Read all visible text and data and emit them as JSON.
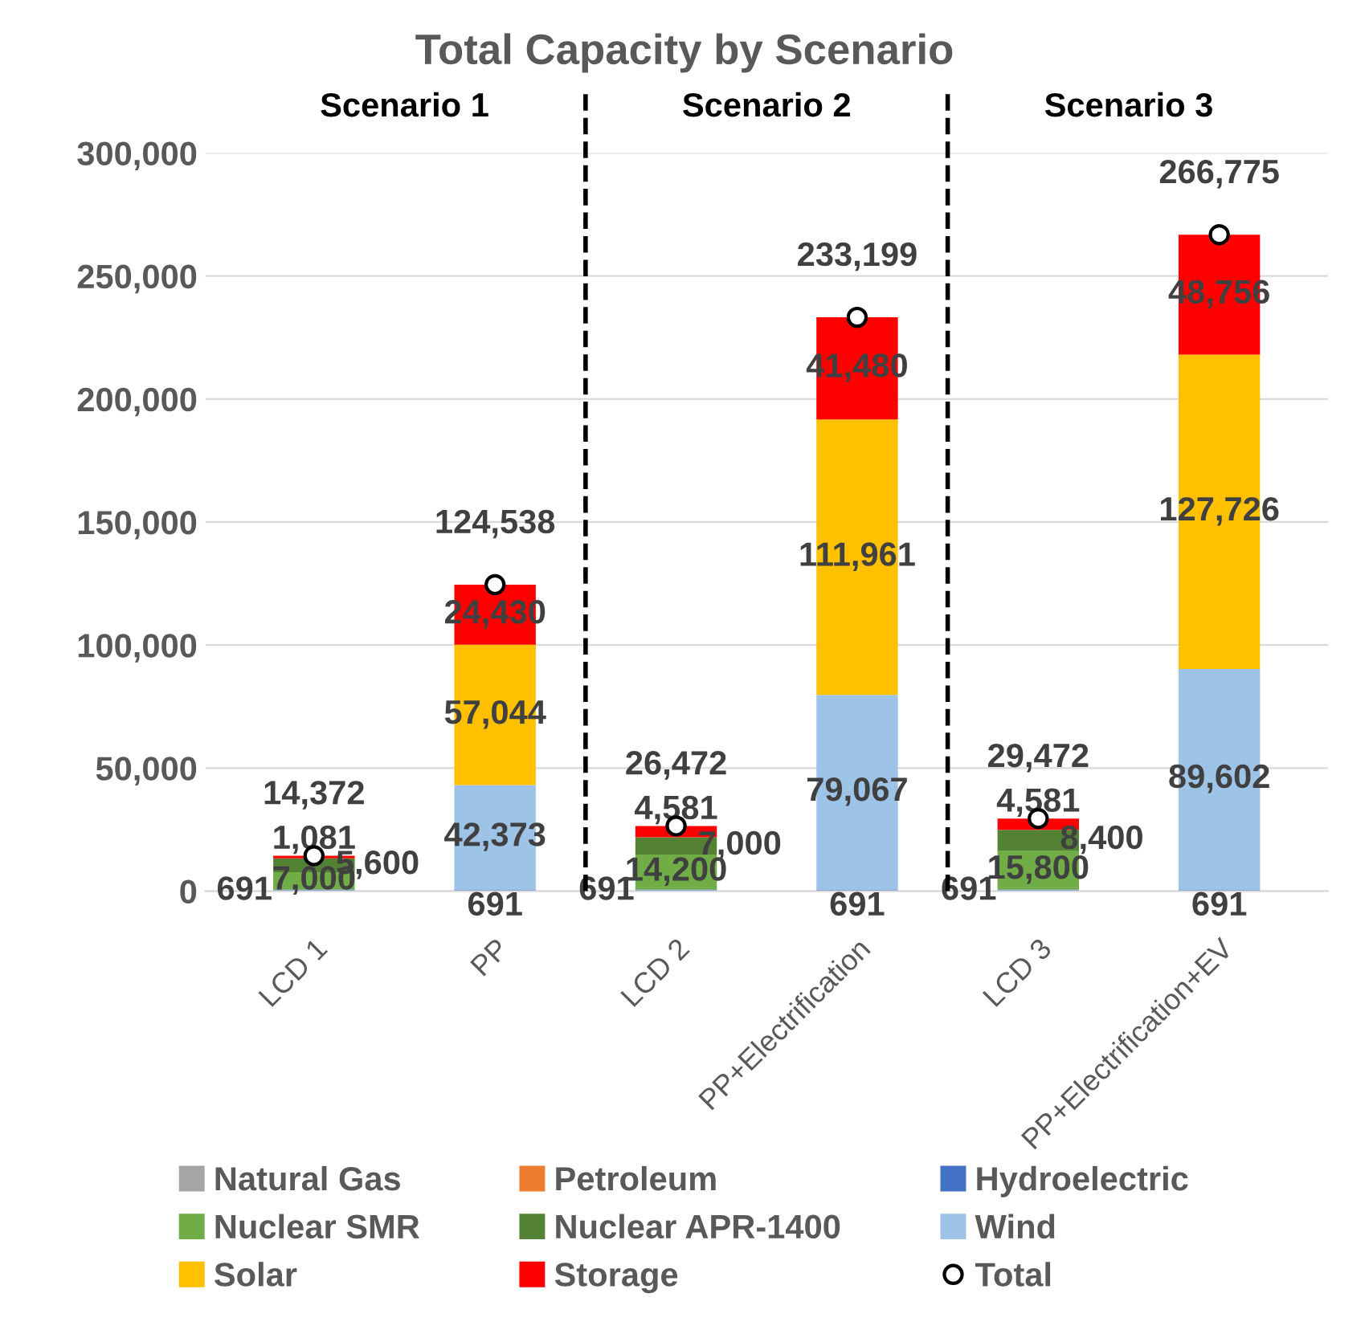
{
  "chart_data": {
    "type": "bar",
    "stacked": true,
    "title": "Total Capacity by Scenario",
    "annotations": [
      "Scenario 1",
      "Scenario 2",
      "Scenario 3"
    ],
    "categories": [
      "LCD 1",
      "PP",
      "LCD 2",
      "PP+Electrification",
      "LCD 3",
      "PP+Electrification+EV"
    ],
    "series": [
      {
        "name": "Natural Gas",
        "color": "#a5a5a5",
        "values": [
          null,
          null,
          null,
          null,
          null,
          null
        ]
      },
      {
        "name": "Petroleum",
        "color": "#ed7d31",
        "values": [
          null,
          null,
          null,
          null,
          null,
          null
        ]
      },
      {
        "name": "Hydroelectric",
        "color": "#4472c4",
        "values": [
          691,
          691,
          691,
          691,
          691,
          691
        ],
        "value_labels": [
          "691",
          "691",
          "691",
          "691",
          "691",
          "691"
        ]
      },
      {
        "name": "Nuclear SMR",
        "color": "#70ad47",
        "values": [
          7000,
          null,
          14200,
          null,
          15800,
          null
        ],
        "value_labels": [
          "7,000",
          null,
          "14,200",
          null,
          "15,800",
          null
        ]
      },
      {
        "name": "Nuclear APR-1400",
        "color": "#548235",
        "values": [
          5600,
          null,
          7000,
          null,
          8400,
          null
        ],
        "value_labels": [
          "5,600",
          null,
          "7,000",
          null,
          "8,400",
          null
        ]
      },
      {
        "name": "Wind",
        "color": "#9dc3e6",
        "values": [
          null,
          42373,
          null,
          79067,
          null,
          89602
        ],
        "value_labels": [
          null,
          "42,373",
          null,
          "79,067",
          null,
          "89,602"
        ]
      },
      {
        "name": "Solar",
        "color": "#ffc000",
        "values": [
          null,
          57044,
          null,
          111961,
          null,
          127726
        ],
        "value_labels": [
          null,
          "57,044",
          null,
          "111,961",
          null,
          "127,726"
        ]
      },
      {
        "name": "Storage",
        "color": "#ff0000",
        "values": [
          1081,
          24430,
          4581,
          41480,
          4581,
          48756
        ],
        "value_labels": [
          "1,081",
          "24,430",
          "4,581",
          "41,480",
          "4,581",
          "48,756"
        ]
      },
      {
        "name": "Total",
        "type": "scatter",
        "marker": "circle",
        "color": "#000000",
        "x": [
          "LCD 1",
          "PP",
          "LCD 2",
          "PP+Electrification",
          "LCD 3",
          "PP+Electrification+EV"
        ],
        "values": [
          14372,
          124538,
          26472,
          233199,
          29472,
          266775
        ],
        "value_labels": [
          "14,372",
          "124,538",
          "26,472",
          "233,199",
          "29,472",
          "266,775"
        ]
      }
    ],
    "ylim": [
      0,
      300000
    ],
    "yticks": [
      0,
      {
        "value": 50000,
        "label": "50,000"
      },
      {
        "value": 100000,
        "label": "100,000"
      },
      {
        "value": 150000,
        "label": "150,000"
      },
      {
        "value": 200000,
        "label": "200,000"
      },
      {
        "value": 250000,
        "label": "250,000"
      },
      {
        "value": 300000,
        "label": "300,000"
      }
    ],
    "grid": "y",
    "legend": "bottom"
  }
}
